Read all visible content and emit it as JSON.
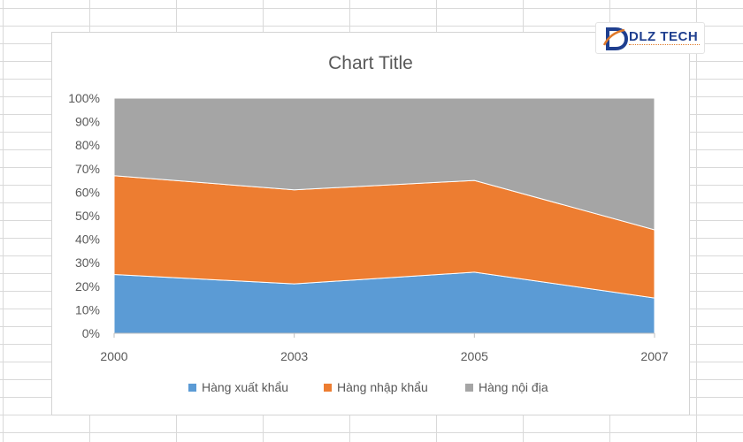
{
  "chart_data": {
    "type": "area",
    "stacked": "percent",
    "title": "Chart Title",
    "categories": [
      "2000",
      "2003",
      "2005",
      "2007"
    ],
    "series": [
      {
        "name": "Hàng xuất khẩu",
        "color": "#5b9bd5",
        "values": [
          25,
          21,
          26,
          15
        ]
      },
      {
        "name": "Hàng nhập khẩu",
        "color": "#ed7d31",
        "values": [
          42,
          40,
          39,
          29
        ]
      },
      {
        "name": "Hàng nội địa",
        "color": "#a5a5a5",
        "values": [
          33,
          39,
          35,
          56
        ]
      }
    ],
    "yticks": [
      "0%",
      "10%",
      "20%",
      "30%",
      "40%",
      "50%",
      "60%",
      "70%",
      "80%",
      "90%",
      "100%"
    ],
    "ylim": [
      0,
      100
    ],
    "legend_position": "bottom",
    "grid": false
  },
  "logo": {
    "text": "DLZ TECH",
    "icon": "dlz-logo-icon",
    "accent": "#e07a2a",
    "brand": "#1f3f8f"
  }
}
